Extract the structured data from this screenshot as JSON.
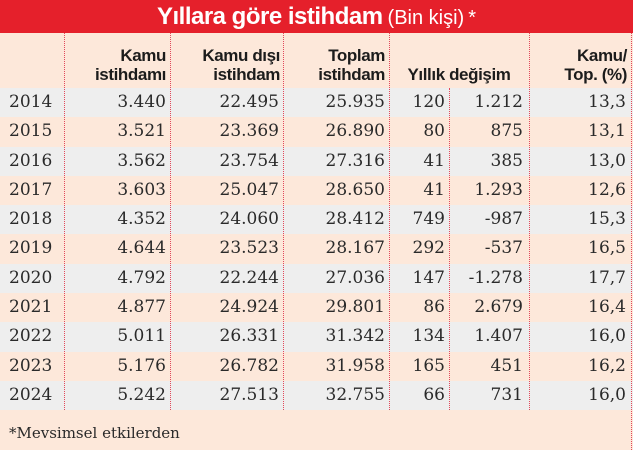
{
  "title": {
    "main": "Yıllara göre istihdam",
    "sub": "(Bin kişi)",
    "star": "*"
  },
  "header": {
    "col1_line1": "Kamu",
    "col1_line2": "istihdamı",
    "col2_line1": "Kamu dışı",
    "col2_line2": "istihdam",
    "col3_line1": "Toplam",
    "col3_line2": "istihdam",
    "col4": "Yıllık değişim",
    "col5_line1": "Kamu/",
    "col5_line2": "Top. (%)"
  },
  "rows": [
    {
      "year": "2014",
      "kamu": "3.440",
      "kamu_disi": "22.495",
      "toplam": "25.935",
      "deg_kamu": "120",
      "deg_kamu_disi": "1.212",
      "oran": "13,3"
    },
    {
      "year": "2015",
      "kamu": "3.521",
      "kamu_disi": "23.369",
      "toplam": "26.890",
      "deg_kamu": "80",
      "deg_kamu_disi": "875",
      "oran": "13,1"
    },
    {
      "year": "2016",
      "kamu": "3.562",
      "kamu_disi": "23.754",
      "toplam": "27.316",
      "deg_kamu": "41",
      "deg_kamu_disi": "385",
      "oran": "13,0"
    },
    {
      "year": "2017",
      "kamu": "3.603",
      "kamu_disi": "25.047",
      "toplam": "28.650",
      "deg_kamu": "41",
      "deg_kamu_disi": "1.293",
      "oran": "12,6"
    },
    {
      "year": "2018",
      "kamu": "4.352",
      "kamu_disi": "24.060",
      "toplam": "28.412",
      "deg_kamu": "749",
      "deg_kamu_disi": "-987",
      "oran": "15,3"
    },
    {
      "year": "2019",
      "kamu": "4.644",
      "kamu_disi": "23.523",
      "toplam": "28.167",
      "deg_kamu": "292",
      "deg_kamu_disi": "-537",
      "oran": "16,5"
    },
    {
      "year": "2020",
      "kamu": "4.792",
      "kamu_disi": "22.244",
      "toplam": "27.036",
      "deg_kamu": "147",
      "deg_kamu_disi": "-1.278",
      "oran": "17,7"
    },
    {
      "year": "2021",
      "kamu": "4.877",
      "kamu_disi": "24.924",
      "toplam": "29.801",
      "deg_kamu": "86",
      "deg_kamu_disi": "2.679",
      "oran": "16,4"
    },
    {
      "year": "2022",
      "kamu": "5.011",
      "kamu_disi": "26.331",
      "toplam": "31.342",
      "deg_kamu": "134",
      "deg_kamu_disi": "1.407",
      "oran": "16,0"
    },
    {
      "year": "2023",
      "kamu": "5.176",
      "kamu_disi": "26.782",
      "toplam": "31.958",
      "deg_kamu": "165",
      "deg_kamu_disi": "451",
      "oran": "16,2"
    },
    {
      "year": "2024",
      "kamu": "5.242",
      "kamu_disi": "27.513",
      "toplam": "32.755",
      "deg_kamu": "66",
      "deg_kamu_disi": "731",
      "oran": "16,0"
    }
  ],
  "footnote": "*Mevsimsel etkilerden",
  "colors": {
    "title_bg": "#e5202b",
    "row_gray": "#eeeeee",
    "row_peach": "#fde8da",
    "divider": "#e2485a"
  },
  "chart_data": {
    "type": "table",
    "title": "Yıllara göre istihdam (Bin kişi) *",
    "columns": [
      "",
      "Kamu istihdamı",
      "Kamu dışı istihdam",
      "Toplam istihdam",
      "Yıllık değişim (Kamu)",
      "Yıllık değişim (Kamu dışı)",
      "Kamu/Top. (%)"
    ],
    "categories": [
      "2014",
      "2015",
      "2016",
      "2017",
      "2018",
      "2019",
      "2020",
      "2021",
      "2022",
      "2023",
      "2024"
    ],
    "series": [
      {
        "name": "Kamu istihdamı",
        "values": [
          3440,
          3521,
          3562,
          3603,
          4352,
          4644,
          4792,
          4877,
          5011,
          5176,
          5242
        ]
      },
      {
        "name": "Kamu dışı istihdam",
        "values": [
          22495,
          23369,
          23754,
          25047,
          24060,
          23523,
          22244,
          24924,
          26331,
          26782,
          27513
        ]
      },
      {
        "name": "Toplam istihdam",
        "values": [
          25935,
          26890,
          27316,
          28650,
          28412,
          28167,
          27036,
          29801,
          31342,
          31958,
          32755
        ]
      },
      {
        "name": "Yıllık değişim (Kamu)",
        "values": [
          120,
          80,
          41,
          41,
          749,
          292,
          147,
          86,
          134,
          165,
          66
        ]
      },
      {
        "name": "Yıllık değişim (Kamu dışı)",
        "values": [
          1212,
          875,
          385,
          1293,
          -987,
          -537,
          -1278,
          2679,
          1407,
          451,
          731
        ]
      },
      {
        "name": "Kamu/Top. (%)",
        "values": [
          13.3,
          13.1,
          13.0,
          12.6,
          15.3,
          16.5,
          17.7,
          16.4,
          16.0,
          16.2,
          16.0
        ]
      }
    ],
    "footnote": "*Mevsimsel etkilerden"
  }
}
